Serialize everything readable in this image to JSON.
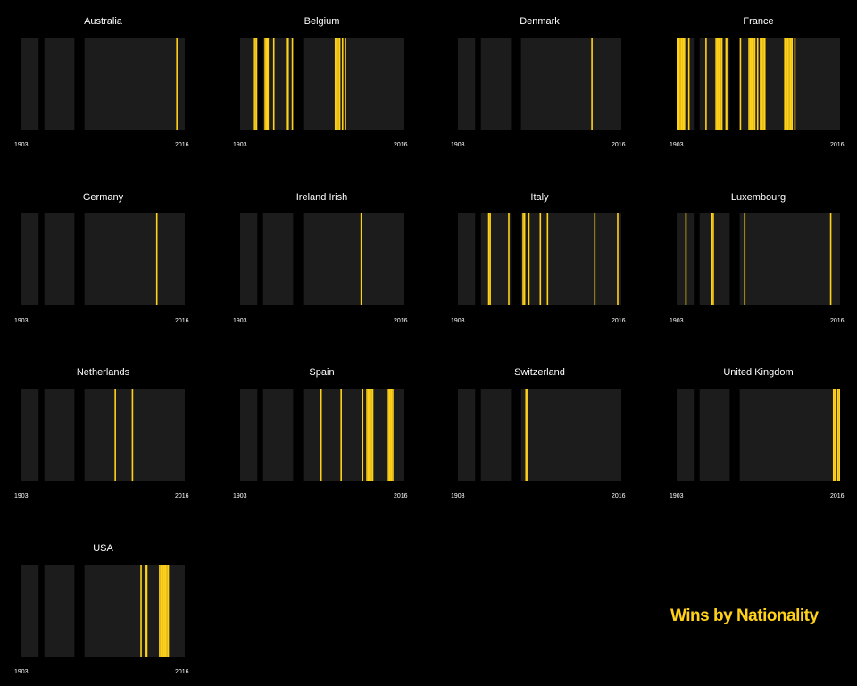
{
  "title": "Wins by Nationality",
  "colors": {
    "background": "#000000",
    "panel": "#1c1c1c",
    "win": "#ffd119",
    "text": "#ffffff"
  },
  "chart_data": {
    "type": "barcode",
    "x_range": [
      1903,
      2016
    ],
    "x_tick_labels": [
      "1903",
      "2016"
    ],
    "no_race_years": [
      [
        1915,
        1918
      ],
      [
        1940,
        1946
      ]
    ],
    "grid": false,
    "panels": [
      {
        "name": "Australia",
        "years": [
          2011
        ]
      },
      {
        "name": "Belgium",
        "years": [
          1912,
          1913,
          1914,
          1920,
          1921,
          1922,
          1926,
          1935,
          1936,
          1939,
          1969,
          1970,
          1971,
          1972,
          1974,
          1976
        ]
      },
      {
        "name": "Denmark",
        "years": [
          1996
        ]
      },
      {
        "name": "France",
        "years": [
          1903,
          1904,
          1905,
          1906,
          1907,
          1908,
          1911,
          1923,
          1930,
          1931,
          1932,
          1933,
          1934,
          1937,
          1938,
          1947,
          1953,
          1954,
          1955,
          1956,
          1957,
          1959,
          1961,
          1962,
          1963,
          1964,
          1978,
          1979,
          1980,
          1981,
          1982,
          1983,
          1985
        ]
      },
      {
        "name": "Germany",
        "years": [
          1997
        ]
      },
      {
        "name": "Ireland Irish",
        "years": [
          1987
        ]
      },
      {
        "name": "Italy",
        "years": [
          1924,
          1925,
          1938,
          1948,
          1949,
          1952,
          1960,
          1965,
          1998,
          2014
        ]
      },
      {
        "name": "Luxembourg",
        "years": [
          1909,
          1927,
          1928,
          1950,
          2010
        ]
      },
      {
        "name": "Netherlands",
        "years": [
          1968,
          1980
        ]
      },
      {
        "name": "Spain",
        "years": [
          1959,
          1973,
          1988,
          1991,
          1992,
          1993,
          1994,
          1995,
          2006,
          2007,
          2008,
          2009
        ]
      },
      {
        "name": "Switzerland",
        "years": [
          1950,
          1951
        ]
      },
      {
        "name": "United Kingdom",
        "years": [
          2012,
          2013,
          2015,
          2016
        ]
      },
      {
        "name": "USA",
        "years": [
          1986,
          1989,
          1990,
          1999,
          2000,
          2001,
          2002,
          2003,
          2004,
          2005
        ]
      }
    ]
  }
}
